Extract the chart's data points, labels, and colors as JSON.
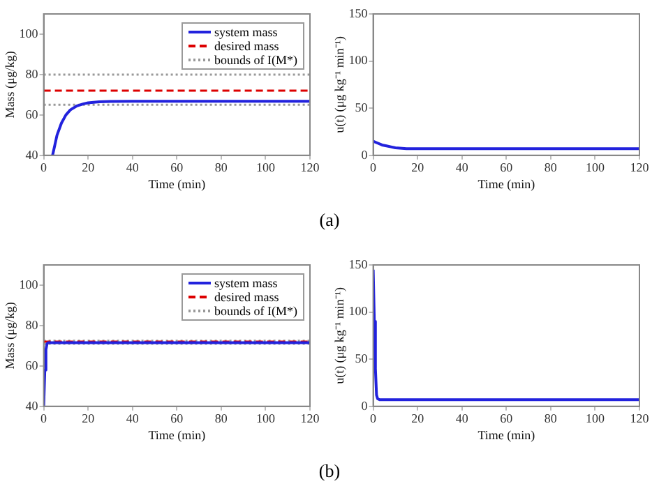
{
  "chart_data": [
    {
      "type": "line",
      "xlabel": "Time (min)",
      "ylabel": "Mass (μg/kg)",
      "xlim": [
        0,
        120
      ],
      "xticks": [
        0,
        20,
        40,
        60,
        80,
        100,
        120
      ],
      "ylim": [
        40,
        110
      ],
      "yticks": [
        40,
        60,
        80,
        100
      ],
      "grid": false,
      "legend": "top right",
      "annotations": [
        "(a)"
      ],
      "series": [
        {
          "name": "system mass",
          "color": "#2222dd",
          "line_style": "solid",
          "x": [
            4,
            5,
            6,
            8,
            10,
            12,
            15,
            18,
            20,
            25,
            30,
            40,
            60,
            80,
            100,
            120
          ],
          "values": [
            40,
            45,
            50,
            56,
            60,
            62.5,
            64.5,
            65.5,
            66,
            66.5,
            66.7,
            66.8,
            66.8,
            66.8,
            66.8,
            66.8
          ]
        },
        {
          "name": "desired mass",
          "color": "#dd0000",
          "line_style": "dashed",
          "x": [
            0,
            120
          ],
          "values": [
            72,
            72
          ]
        },
        {
          "name": "bounds of I(M*)",
          "color": "#999999",
          "line_style": "dotted",
          "x": [
            0,
            120
          ],
          "values": [
            80,
            80
          ]
        },
        {
          "color": "#999999",
          "line_style": "dotted",
          "x": [
            0,
            120
          ],
          "values": [
            65,
            65
          ]
        }
      ]
    },
    {
      "type": "line",
      "xlabel": "Time (min)",
      "ylabel": "u(t) (μg kg⁻¹ min⁻¹)",
      "xlim": [
        0,
        120
      ],
      "xticks": [
        0,
        20,
        40,
        60,
        80,
        100,
        120
      ],
      "ylim": [
        0,
        150
      ],
      "yticks": [
        0,
        50,
        100,
        150
      ],
      "grid": false,
      "series": [
        {
          "color": "#2222dd",
          "line_style": "solid",
          "x": [
            0,
            2,
            4,
            6,
            8,
            10,
            15,
            20,
            40,
            60,
            80,
            100,
            120
          ],
          "values": [
            15,
            13,
            11,
            10,
            9,
            8,
            7,
            7,
            7,
            7,
            7,
            7,
            7
          ]
        }
      ]
    },
    {
      "type": "line",
      "xlabel": "Time (min)",
      "ylabel": "Mass (μg/kg)",
      "xlim": [
        0,
        120
      ],
      "xticks": [
        0,
        20,
        40,
        60,
        80,
        100,
        120
      ],
      "ylim": [
        40,
        110
      ],
      "yticks": [
        40,
        60,
        80,
        100
      ],
      "grid": false,
      "legend": "top right",
      "annotations": [
        "(b)"
      ],
      "series": [
        {
          "name": "system mass",
          "color": "#2222dd",
          "line_style": "solid",
          "x": [
            0,
            0.5,
            1,
            1.5,
            2,
            120
          ],
          "values": [
            40,
            58,
            68,
            71,
            71.5,
            71.5
          ]
        },
        {
          "name": "desired mass",
          "color": "#dd0000",
          "line_style": "dashed",
          "x": [
            0,
            120
          ],
          "values": [
            72,
            72
          ]
        },
        {
          "name": "bounds of I(M*)",
          "color": "#999999",
          "line_style": "dotted",
          "x": [
            0,
            120
          ],
          "values": [
            72.5,
            72.5
          ]
        },
        {
          "color": "#999999",
          "line_style": "dotted",
          "x": [
            0,
            120
          ],
          "values": [
            71,
            71
          ]
        }
      ]
    },
    {
      "type": "line",
      "xlabel": "Time (min)",
      "ylabel": "u(t) (μg kg⁻¹ min⁻¹)",
      "xlim": [
        0,
        120
      ],
      "xticks": [
        0,
        20,
        40,
        60,
        80,
        100,
        120
      ],
      "ylim": [
        0,
        150
      ],
      "yticks": [
        0,
        50,
        100,
        150
      ],
      "grid": false,
      "series": [
        {
          "color": "#2222dd",
          "line_style": "solid",
          "x": [
            0,
            0.5,
            1,
            1.5,
            2,
            3,
            120
          ],
          "values": [
            145,
            90,
            40,
            12,
            8,
            7,
            7
          ]
        }
      ]
    }
  ]
}
